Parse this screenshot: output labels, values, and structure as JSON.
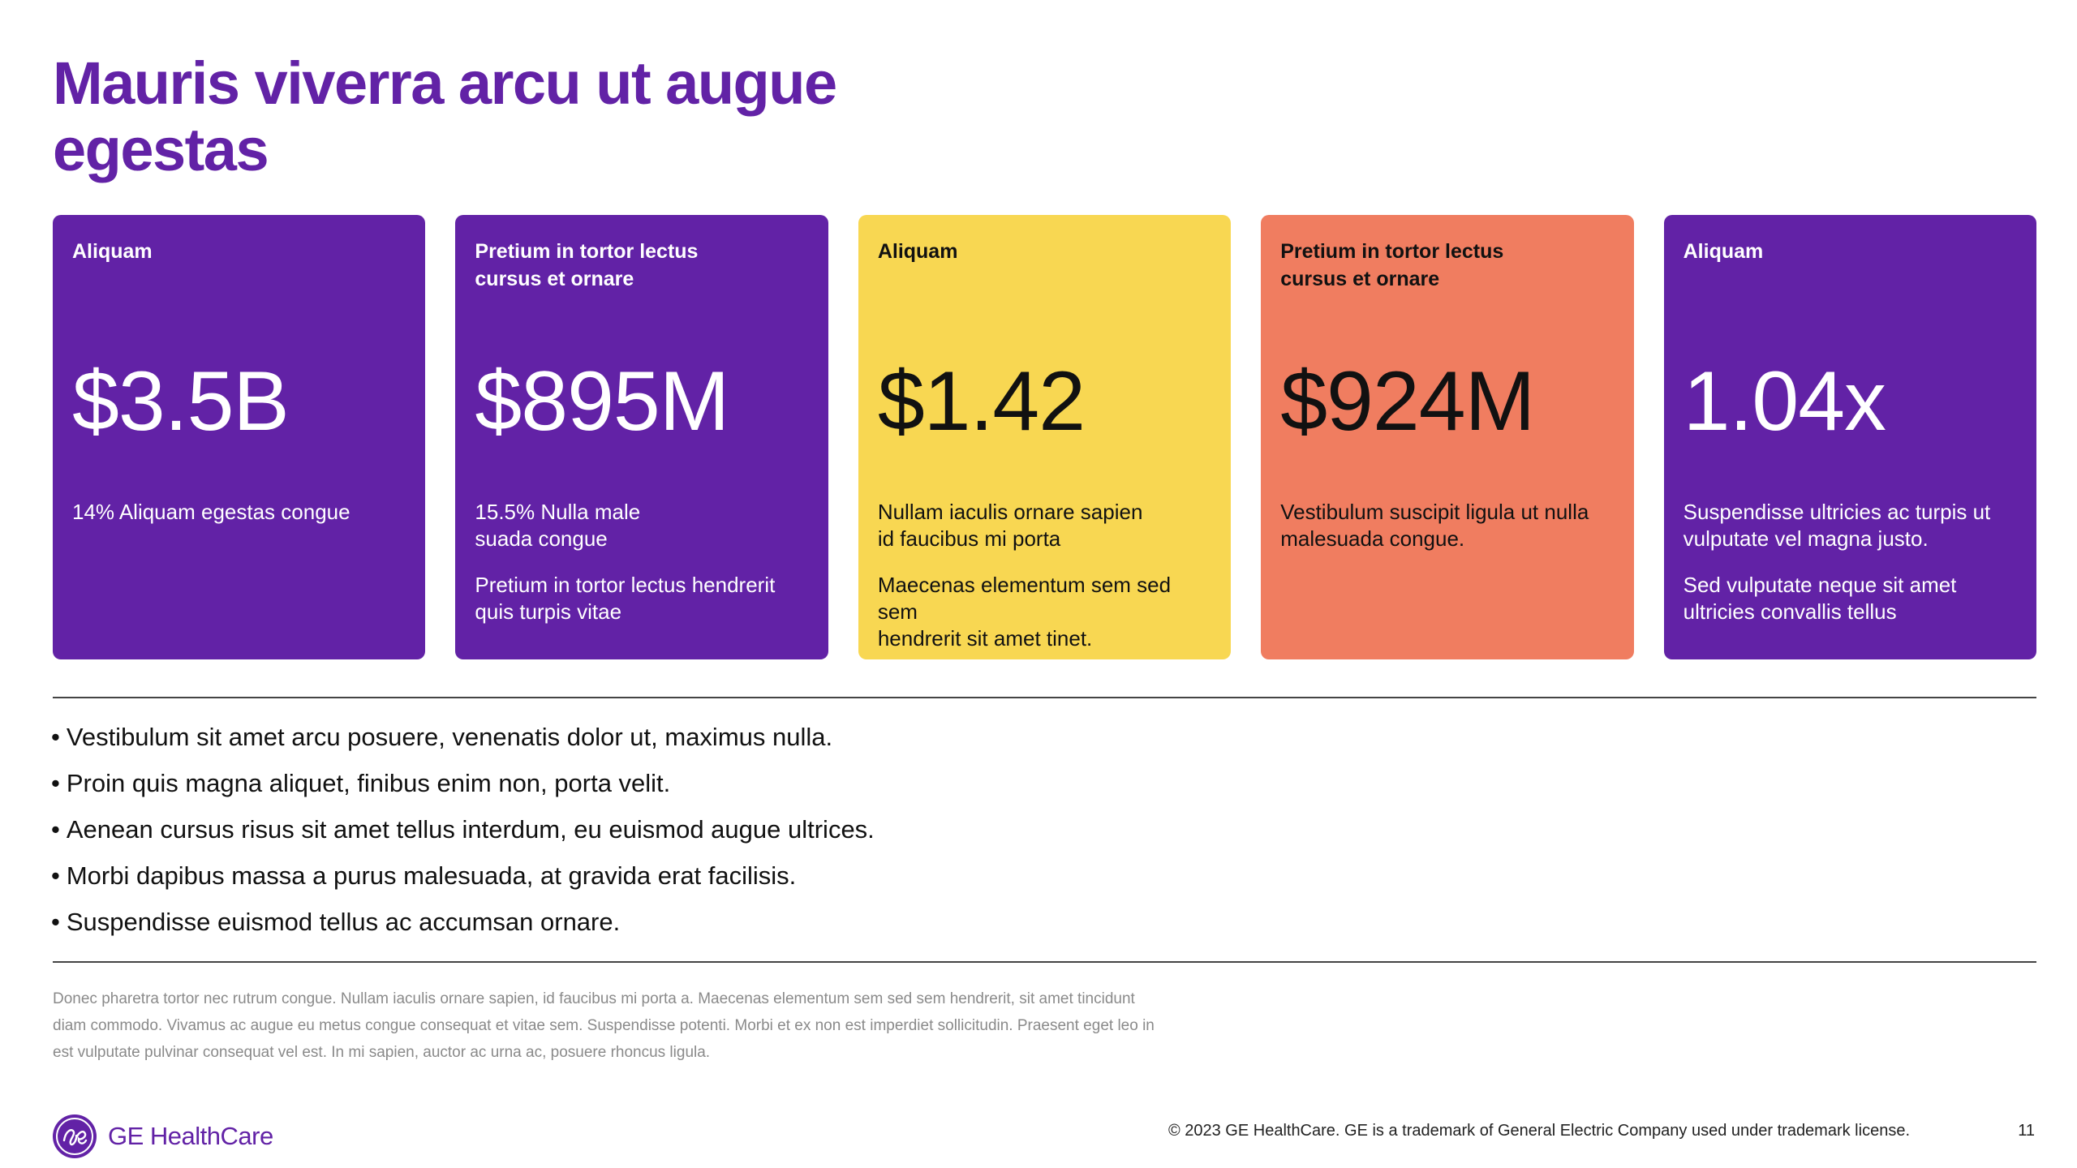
{
  "title": "Mauris viverra arcu ut augue egestas",
  "cards": [
    {
      "label": "Aliquam",
      "value": "$3.5B",
      "desc": "14% Aliquam egestas congue",
      "desc2": "",
      "color": "#6222a6"
    },
    {
      "label": "Pretium in tortor lectus\ncursus et ornare",
      "value": "$895M",
      "desc": "15.5% Nulla male\nsuada congue",
      "desc2": "Pretium in tortor lectus hendrerit\nquis turpis vitae",
      "color": "#6222a6"
    },
    {
      "label": "Aliquam",
      "value": "$1.42",
      "desc": "Nullam iaculis ornare sapien\nid faucibus mi porta",
      "desc2": "Maecenas elementum sem sed sem\nhendrerit sit amet tinet.",
      "color": "#f8d752"
    },
    {
      "label": "Pretium in tortor lectus\ncursus et ornare",
      "value": "$924M",
      "desc": "Vestibulum suscipit ligula ut nulla\nmalesuada congue.",
      "desc2": "",
      "color": "#f07d60"
    },
    {
      "label": "Aliquam",
      "value": "1.04x",
      "desc": "Suspendisse ultricies ac turpis ut\nvulputate vel magna justo.",
      "desc2": "Sed vulputate neque sit amet\nultricies convallis tellus",
      "color": "#6222a6"
    }
  ],
  "bullets": [
    "Vestibulum sit amet arcu posuere, venenatis dolor ut, maximus nulla.",
    "Proin quis magna aliquet, finibus enim non, porta velit.",
    "Aenean cursus risus sit amet tellus interdum, eu euismod augue ultrices.",
    "Morbi dapibus massa a purus malesuada, at gravida erat facilisis.",
    "Suspendisse euismod tellus ac accumsan ornare."
  ],
  "footnote": "Donec pharetra tortor nec rutrum congue. Nullam iaculis ornare sapien, id faucibus mi porta a. Maecenas elementum sem sed sem hendrerit, sit amet tincidunt diam commodo. Vivamus ac augue eu metus congue consequat et vitae sem. Suspendisse potenti. Morbi et ex non est imperdiet sollicitudin. Praesent eget leo in est vulputate pulvinar consequat vel est. In mi sapien, auctor ac urna ac, posuere rhoncus ligula.",
  "logo": {
    "text": "GE HealthCare",
    "icon": "ge-monogram-icon"
  },
  "copyright": "© 2023 GE HealthCare. GE is a trademark of General Electric Company used under trademark license.",
  "page_number": "11",
  "colors": {
    "purple": "#6222a6",
    "yellow": "#f8d752",
    "salmon": "#f07d60"
  }
}
